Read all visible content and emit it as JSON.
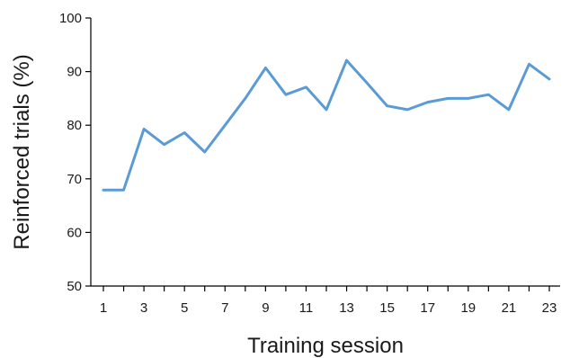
{
  "chart_data": {
    "type": "line",
    "title": "",
    "xlabel": "Training session",
    "ylabel": "Reinforced trials (%)",
    "xlim": [
      1,
      23
    ],
    "ylim": [
      50,
      100
    ],
    "x_ticks": [
      1,
      3,
      5,
      7,
      9,
      11,
      13,
      15,
      17,
      19,
      21,
      23
    ],
    "y_ticks": [
      50,
      60,
      70,
      80,
      90,
      100
    ],
    "grid": false,
    "legend": "none",
    "series": [
      {
        "color": "#5b9bd5",
        "x": [
          1,
          2,
          3,
          4,
          5,
          6,
          7,
          8,
          9,
          10,
          11,
          12,
          13,
          14,
          15,
          16,
          17,
          18,
          19,
          20,
          21,
          22,
          23
        ],
        "values": [
          67.9,
          67.9,
          79.3,
          76.4,
          78.6,
          75.0,
          80.0,
          85.0,
          90.7,
          85.7,
          87.1,
          82.9,
          92.1,
          87.9,
          83.6,
          82.9,
          84.3,
          85.0,
          85.0,
          85.7,
          82.9,
          91.4,
          88.6
        ]
      }
    ]
  }
}
